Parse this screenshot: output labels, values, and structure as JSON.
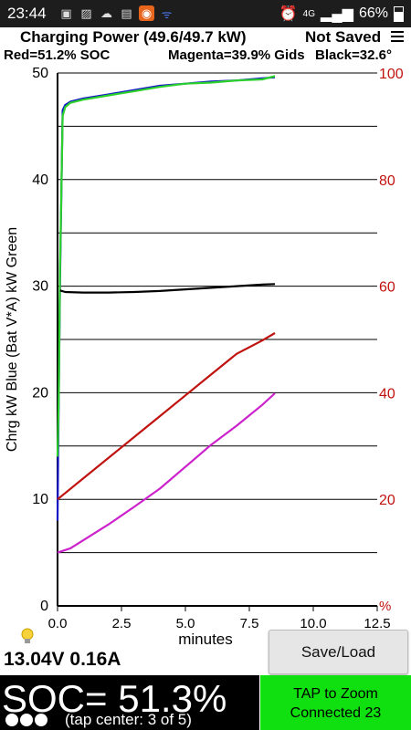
{
  "status_bar": {
    "time": "23:44",
    "network": "4G",
    "battery": "66%",
    "left_icons": [
      "gallery-icon",
      "image-icon",
      "cloud-icon",
      "calendar-icon",
      "app-icon",
      "rss-icon"
    ]
  },
  "header": {
    "title": "Charging Power (49.6/49.7 kW)",
    "save_status": "Not Saved",
    "soc_label": "Red=51.2% SOC",
    "gids_label": "Magenta=39.9% Gids",
    "temp_label": "Black=32.6°"
  },
  "chart_data": {
    "type": "line",
    "ylabel": "Chrg kW Blue  (Bat V*A) kW Green",
    "xlabel": "minutes",
    "xlim": [
      0,
      12.5
    ],
    "ylim": [
      0,
      50
    ],
    "y2lim": [
      0,
      100
    ],
    "x_ticks": [
      "0.0",
      "2.5",
      "5.0",
      "7.5",
      "10.0",
      "12.5"
    ],
    "y_ticks": [
      "0",
      "10",
      "20",
      "30",
      "40",
      "50"
    ],
    "y2_ticks": [
      "20",
      "40",
      "60",
      "80",
      "100"
    ],
    "y2_unit": "%",
    "grid": "horizontal",
    "series": [
      {
        "color": "#1515c8",
        "axis": "left",
        "x": [
          0,
          0.02,
          0.1,
          0.2,
          0.3,
          0.5,
          1,
          2,
          3,
          4,
          5,
          6,
          7,
          8,
          8.5
        ],
        "y": [
          8,
          14,
          31,
          46.5,
          47.0,
          47.3,
          47.6,
          48.0,
          48.4,
          48.8,
          49.0,
          49.2,
          49.3,
          49.5,
          49.6
        ]
      },
      {
        "color": "#2bd12b",
        "axis": "left",
        "x": [
          0,
          0.05,
          0.1,
          0.2,
          0.3,
          0.5,
          1,
          2,
          3,
          4,
          5,
          6,
          7,
          8,
          8.5
        ],
        "y": [
          14,
          20,
          32,
          46,
          46.8,
          47.2,
          47.5,
          47.9,
          48.3,
          48.7,
          49.0,
          49.1,
          49.3,
          49.4,
          49.7
        ]
      },
      {
        "color": "#000000",
        "axis": "right",
        "x": [
          0.1,
          0.3,
          1,
          2,
          3,
          4,
          5,
          6,
          7,
          8,
          8.5
        ],
        "y": [
          59.2,
          58.9,
          58.8,
          58.8,
          58.9,
          59.1,
          59.4,
          59.7,
          60.0,
          60.3,
          60.4
        ]
      },
      {
        "color": "#c0130f",
        "axis": "right",
        "x": [
          0,
          1,
          2,
          3,
          4,
          5,
          6,
          7,
          8,
          8.5
        ],
        "y": [
          20.0,
          23.9,
          27.8,
          31.7,
          35.6,
          39.5,
          43.4,
          47.3,
          49.8,
          51.2
        ]
      },
      {
        "color": "#cc22cc",
        "axis": "right",
        "x": [
          0,
          0.5,
          1,
          2,
          3,
          4,
          5,
          6,
          7,
          8,
          8.5
        ],
        "y": [
          10.0,
          10.8,
          12.3,
          15.3,
          18.6,
          22.0,
          26.1,
          30.2,
          33.8,
          37.7,
          39.9
        ]
      }
    ]
  },
  "readout": {
    "voltage_current": "13.04V 0.16A"
  },
  "buttons": {
    "save_load": "Save/Load"
  },
  "soc": {
    "text": "SOC= 51.3%",
    "tap_hint": "(tap center: 3 of 5)",
    "page_dots": 3
  },
  "zoom": {
    "line1": "TAP to Zoom",
    "line2": "Connected 23"
  }
}
